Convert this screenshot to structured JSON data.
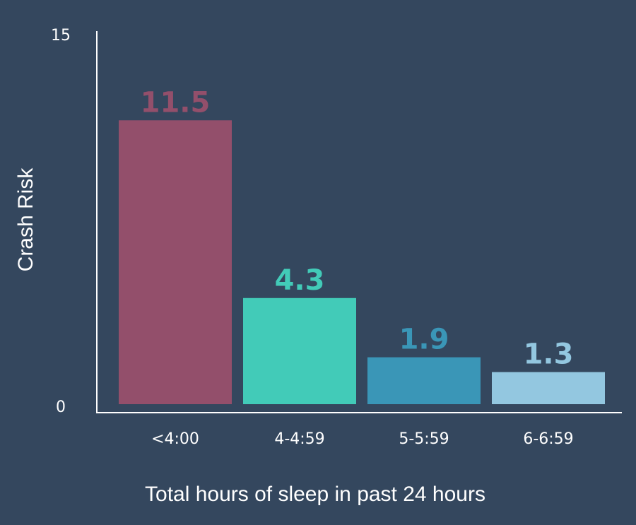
{
  "chart_data": {
    "type": "bar",
    "title": "",
    "xlabel": "Total hours of sleep in past 24 hours",
    "ylabel": "Crash Risk",
    "categories": [
      "<4:00",
      "4-4:59",
      "5-5:59",
      "6-6:59"
    ],
    "values": [
      11.5,
      4.3,
      1.9,
      1.3
    ],
    "value_labels": [
      "11.5",
      "4.3",
      "1.9",
      "1.3"
    ],
    "ylim": [
      0,
      15
    ],
    "yticks": [
      0,
      15
    ],
    "ytick_labels": [
      "0",
      "15"
    ],
    "grid": false,
    "legend": "none",
    "bar_colors": [
      "#934f6b",
      "#42cbb8",
      "#3a96b7",
      "#93c7e0"
    ],
    "label_colors": [
      "#934f6b",
      "#42cbb8",
      "#3a96b7",
      "#93c7e0"
    ]
  },
  "colors": {
    "background": "#34475e",
    "axis": "#ffffff",
    "text": "#ffffff"
  }
}
